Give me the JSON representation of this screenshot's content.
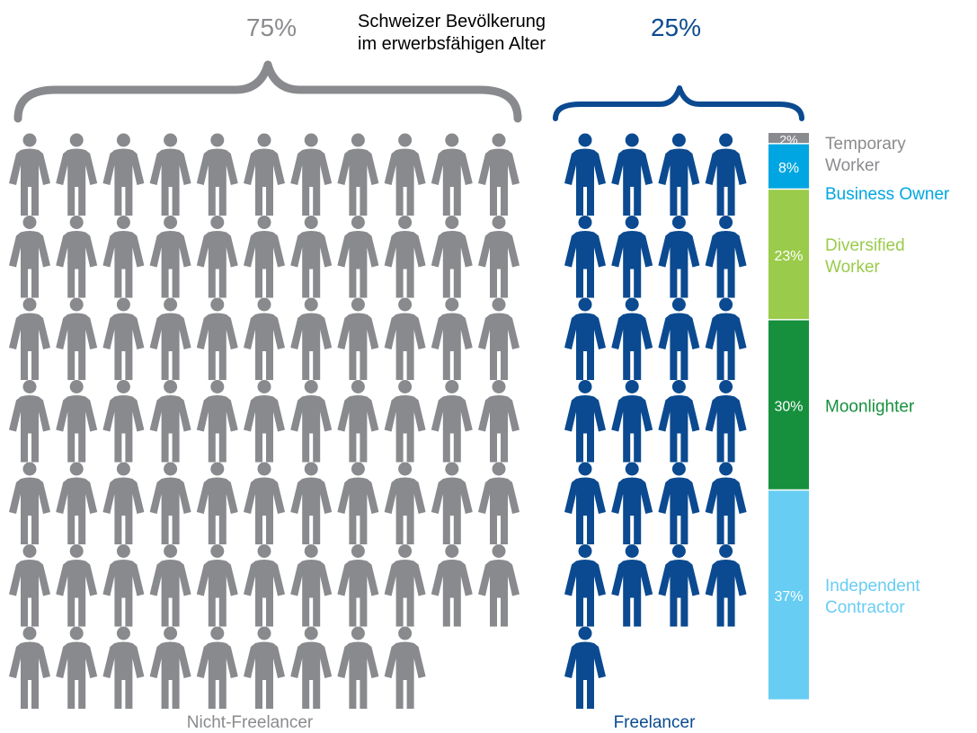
{
  "chart_data": {
    "type": "pictogram",
    "title_lines": [
      "Schweizer Bevölkerung",
      "im erwerbsfähigen Alter"
    ],
    "groups": [
      {
        "name": "Nicht-Freelancer",
        "share": "75%",
        "icon_count": 75,
        "color": "#898a8d"
      },
      {
        "name": "Freelancer",
        "share": "25%",
        "icon_count": 25,
        "color": "#0b4a90"
      }
    ],
    "freelancer_breakdown": {
      "type": "stacked-bar",
      "segments": [
        {
          "value": 2,
          "label": "2%",
          "name_lines": [
            "Temporary",
            "Worker"
          ],
          "color": "#8a8b8e",
          "name_color": "#8a8b8e"
        },
        {
          "value": 8,
          "label": "8%",
          "name_lines": [
            "Business Owner"
          ],
          "color": "#00a6e2",
          "name_color": "#00a6e2"
        },
        {
          "value": 23,
          "label": "23%",
          "name_lines": [
            "Diversified",
            "Worker"
          ],
          "color": "#9acb4a",
          "name_color": "#9acb4a"
        },
        {
          "value": 30,
          "label": "30%",
          "name_lines": [
            "Moonlighter"
          ],
          "color": "#16903d",
          "name_color": "#16903d"
        },
        {
          "value": 37,
          "label": "37%",
          "name_lines": [
            "Independent",
            "Contractor"
          ],
          "color": "#68cdf3",
          "name_color": "#68cdf3"
        }
      ]
    },
    "icon": "person-icon"
  }
}
